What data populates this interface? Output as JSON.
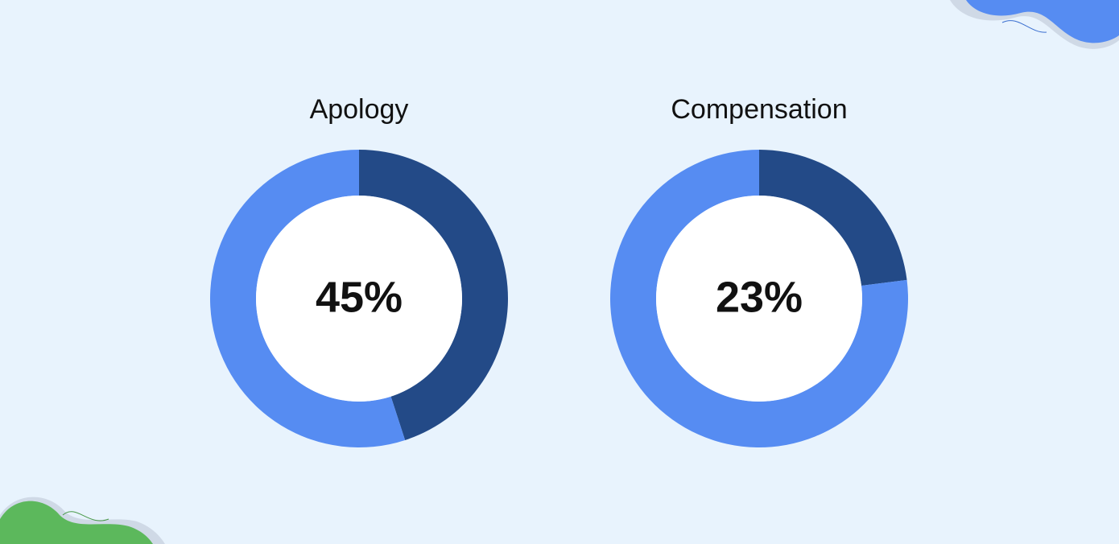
{
  "chart_data": [
    {
      "type": "donut",
      "title": "Apology",
      "values": [
        45,
        55
      ],
      "value_labels": [
        "45%",
        null
      ],
      "colors": [
        "#234a87",
        "#568cf2"
      ]
    },
    {
      "type": "donut",
      "title": "Compensation",
      "values": [
        23,
        77
      ],
      "value_labels": [
        "23%",
        null
      ],
      "colors": [
        "#234a87",
        "#568cf2"
      ]
    }
  ]
}
